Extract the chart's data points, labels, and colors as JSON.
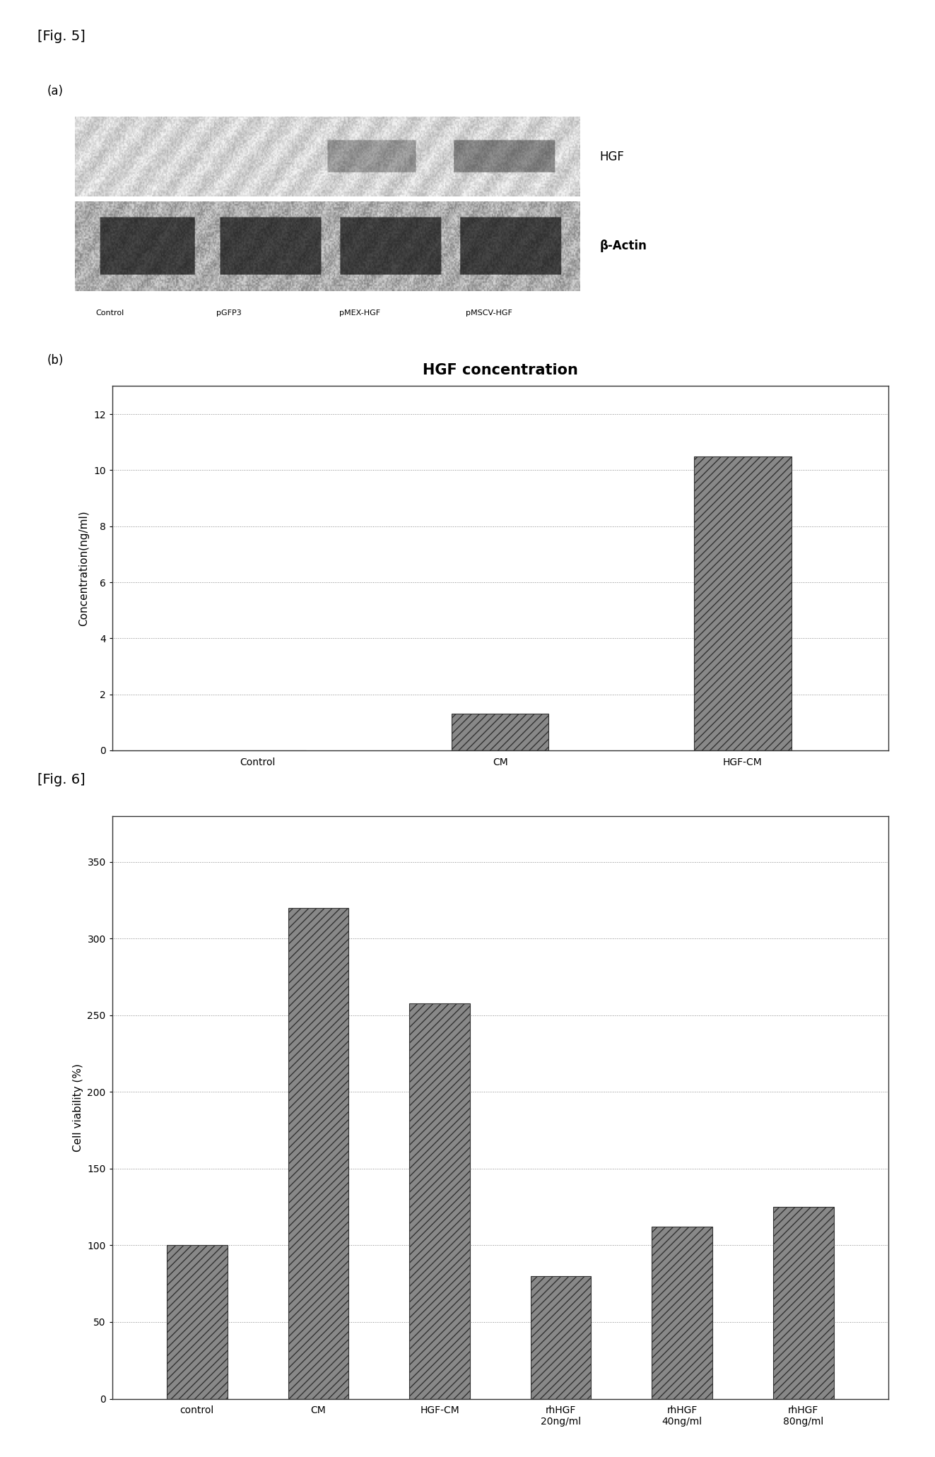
{
  "fig5_label": "[Fig. 5]",
  "fig6_label": "[Fig. 6]",
  "panel_a_label": "(a)",
  "panel_b_label": "(b)",
  "blot_labels_bottom": [
    "Control",
    "pGFP3",
    "pMEX-HGF",
    "pMSCV-HGF"
  ],
  "blot_label_HGF": "HGF",
  "blot_label_actin": "β-Actin",
  "fig5b_title": "HGF concentration",
  "fig5b_categories": [
    "Control",
    "CM",
    "HGF-CM"
  ],
  "fig5b_values": [
    0.0,
    1.3,
    10.5
  ],
  "fig5b_ylabel": "Concentration(ng/ml)",
  "fig5b_yticks": [
    0,
    2,
    4,
    6,
    8,
    10,
    12
  ],
  "fig5b_ylim": [
    0,
    13
  ],
  "fig6_categories": [
    "control",
    "CM",
    "HGF-CM",
    "rhHGF\n20ng/ml",
    "rhHGF\n40ng/ml",
    "rhHGF\n80ng/ml"
  ],
  "fig6_values": [
    100,
    320,
    258,
    80,
    112,
    125
  ],
  "fig6_ylabel": "Cell viability (%)",
  "fig6_yticks": [
    0,
    50,
    100,
    150,
    200,
    250,
    300,
    350
  ],
  "fig6_ylim": [
    0,
    380
  ],
  "bar_color": "#888888",
  "bar_edge_color": "#333333",
  "grid_color": "#888888",
  "box_face_color": "#ffffff",
  "box_edge_color": "#333333",
  "background_color": "#ffffff",
  "title_fontsize": 15,
  "label_fontsize": 10,
  "tick_fontsize": 10,
  "axis_label_fontsize": 11,
  "fig5_label_fontsize": 14,
  "fig6_label_fontsize": 14
}
